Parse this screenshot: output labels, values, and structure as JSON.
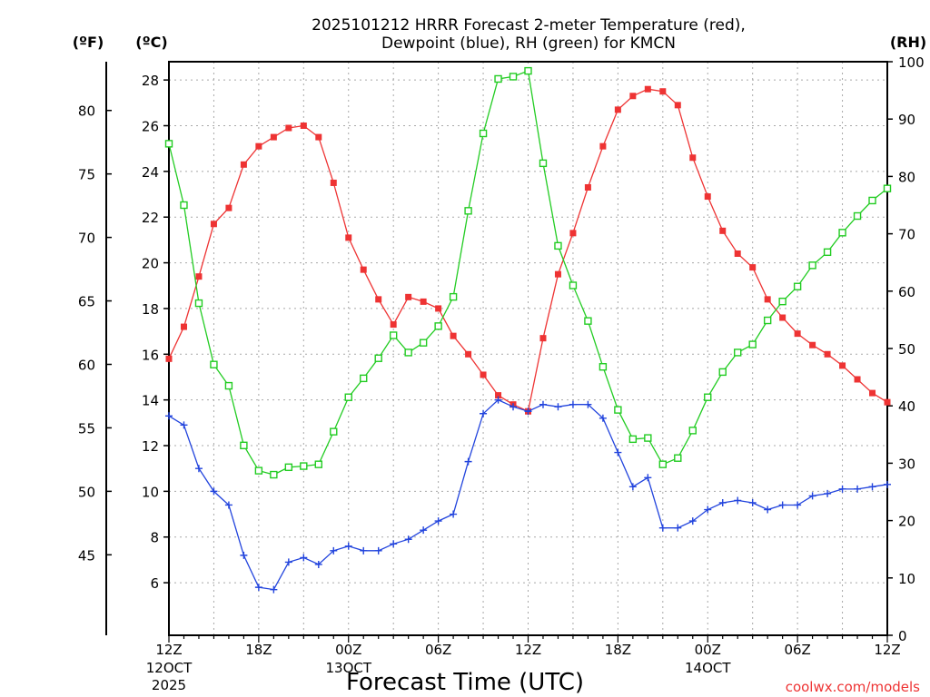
{
  "chart_data": {
    "type": "line",
    "title_line1": "2025101212 HRRR Forecast 2-meter Temperature (red),",
    "title_line2": "Dewpoint (blue), RH (green) for KMCN",
    "xlabel": "Forecast Time (UTC)",
    "left_outer_unit": "(ºF)",
    "left_inner_unit": "(ºC)",
    "right_unit": "(RH)",
    "credit": "coolwx.com/models",
    "x_range_hours": [
      0,
      48
    ],
    "y_range_celsius": [
      3.7,
      28.8
    ],
    "y_range_rh": [
      0,
      100
    ],
    "celsius_ticks": [
      6,
      8,
      10,
      12,
      14,
      16,
      18,
      20,
      22,
      24,
      26,
      28
    ],
    "fahrenheit_ticks": [
      45,
      50,
      55,
      60,
      65,
      70,
      75,
      80
    ],
    "rh_ticks": [
      0,
      10,
      20,
      30,
      40,
      50,
      60,
      70,
      80,
      90,
      100
    ],
    "x_ticks": [
      {
        "hour": 0,
        "label": "12Z",
        "date": "12OCT",
        "year": "2025"
      },
      {
        "hour": 6,
        "label": "18Z"
      },
      {
        "hour": 12,
        "label": "00Z",
        "date": "13OCT"
      },
      {
        "hour": 18,
        "label": "06Z"
      },
      {
        "hour": 24,
        "label": "12Z"
      },
      {
        "hour": 30,
        "label": "18Z"
      },
      {
        "hour": 36,
        "label": "00Z",
        "date": "14OCT"
      },
      {
        "hour": 42,
        "label": "06Z"
      },
      {
        "hour": 48,
        "label": "12Z"
      }
    ],
    "hours": [
      0,
      1,
      2,
      3,
      4,
      5,
      6,
      7,
      8,
      9,
      10,
      11,
      12,
      13,
      14,
      15,
      16,
      17,
      18,
      19,
      20,
      21,
      22,
      23,
      24,
      25,
      26,
      27,
      28,
      29,
      30,
      31,
      32,
      33,
      34,
      35,
      36,
      37,
      38,
      39,
      40,
      41,
      42,
      43,
      44,
      45,
      46,
      47,
      48
    ],
    "series": [
      {
        "name": "2-meter Temperature",
        "color": "#ee3333",
        "marker": "filled-square",
        "units": "C",
        "values": [
          15.8,
          17.2,
          19.4,
          21.7,
          22.4,
          24.3,
          25.1,
          25.5,
          25.9,
          26.0,
          25.5,
          23.5,
          21.1,
          19.7,
          18.4,
          17.3,
          18.5,
          18.3,
          18.0,
          16.8,
          16.0,
          15.1,
          14.2,
          13.8,
          13.5,
          16.7,
          19.5,
          21.3,
          23.3,
          25.1,
          26.7,
          27.3,
          27.6,
          27.5,
          26.9,
          24.6,
          22.9,
          21.4,
          20.4,
          19.8,
          18.4,
          17.6,
          16.9,
          16.4,
          16.0,
          15.5,
          14.9,
          14.3,
          13.9
        ]
      },
      {
        "name": "Dewpoint",
        "color": "#2244dd",
        "marker": "plus",
        "units": "C",
        "values": [
          13.3,
          12.9,
          11.0,
          10.0,
          9.4,
          7.2,
          5.8,
          5.7,
          6.9,
          7.1,
          6.8,
          7.4,
          7.6,
          7.4,
          7.4,
          7.7,
          7.9,
          8.3,
          8.7,
          9.0,
          11.3,
          13.4,
          14.0,
          13.7,
          13.5,
          13.8,
          13.7,
          13.8,
          13.8,
          13.2,
          11.7,
          10.2,
          10.6,
          8.4,
          8.4,
          8.7,
          9.2,
          9.5,
          9.6,
          9.5,
          9.2,
          9.4,
          9.4,
          9.8,
          9.9,
          10.1,
          10.1,
          10.2,
          10.3
        ]
      },
      {
        "name": "Relative Humidity",
        "color": "#22cc22",
        "marker": "open-square",
        "units": "%",
        "values": [
          85.7,
          75.0,
          57.9,
          47.2,
          43.5,
          33.1,
          28.7,
          28.0,
          29.3,
          29.5,
          29.8,
          35.5,
          41.5,
          44.8,
          48.3,
          52.3,
          49.3,
          51.0,
          53.9,
          59.0,
          74.0,
          87.5,
          97.0,
          97.4,
          98.4,
          82.3,
          67.9,
          61.0,
          54.8,
          46.8,
          39.3,
          34.2,
          34.4,
          29.8,
          30.9,
          35.7,
          41.5,
          45.9,
          49.3,
          50.7,
          54.9,
          58.2,
          60.8,
          64.5,
          66.8,
          70.2,
          73.1,
          75.8,
          77.9
        ]
      }
    ]
  }
}
